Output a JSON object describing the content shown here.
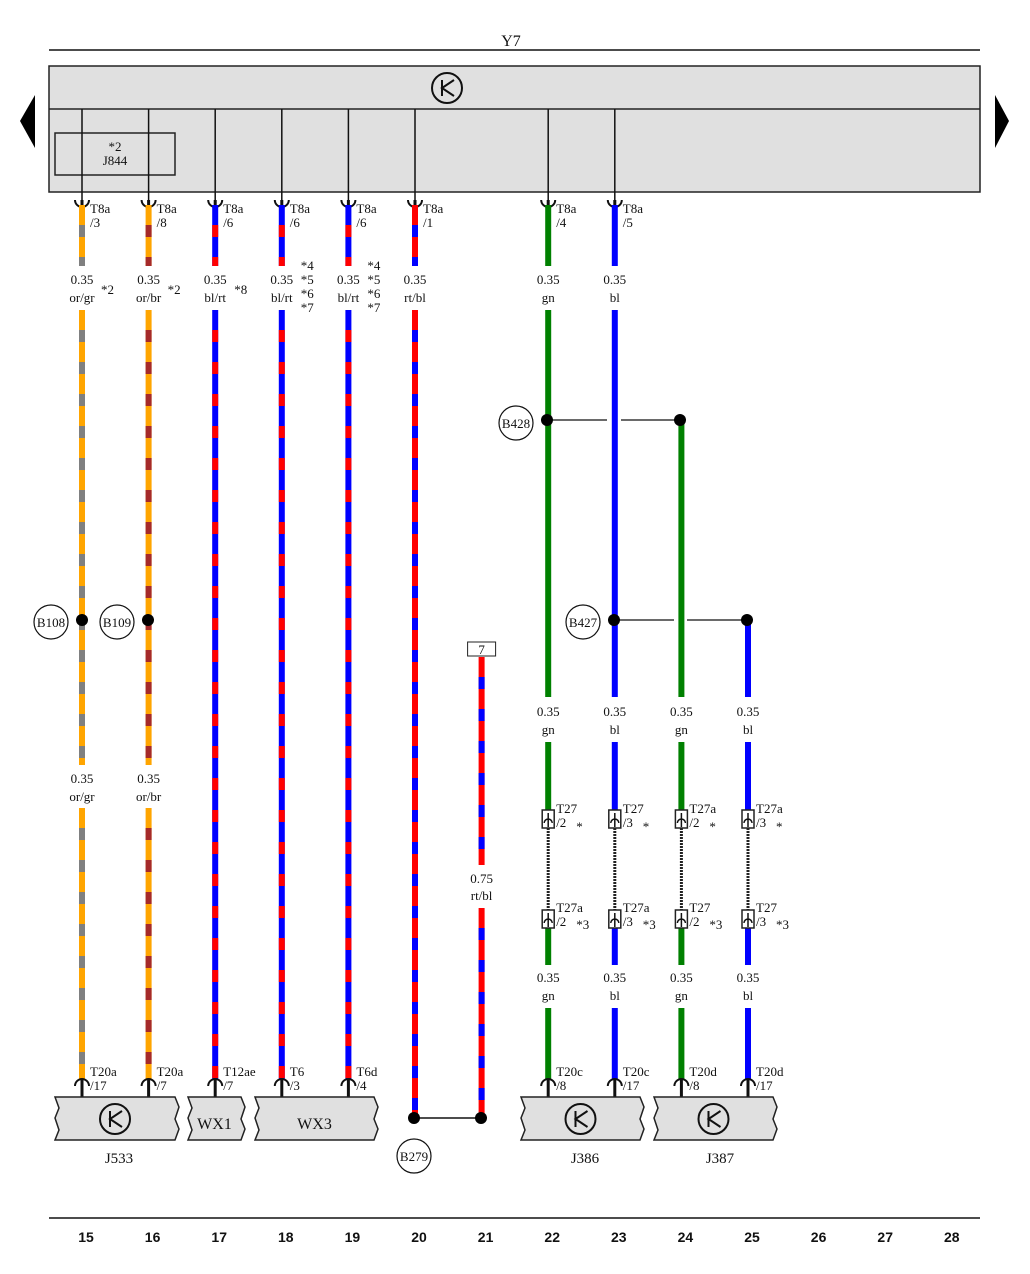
{
  "title": "Y7",
  "colors": {
    "or": "#ffa500",
    "gr": "#808080",
    "br": "#a52a2a",
    "bl": "#0000ff",
    "rt": "#ff0000",
    "gn": "#008000",
    "panel": "#e0e0e0"
  },
  "top_component": {
    "name": "J844",
    "footnote": "*2"
  },
  "wires": [
    {
      "col": "15",
      "top": {
        "conn": "T8a",
        "pin": "/3"
      },
      "gauge": "0.35",
      "code": "or/gr",
      "base": "or",
      "stripe": "gr",
      "note": "*2",
      "mid": {
        "gauge": "0.35",
        "code": "or/gr"
      },
      "bottom": {
        "conn": "T20a",
        "pin": "/17"
      }
    },
    {
      "col": "16",
      "top": {
        "conn": "T8a",
        "pin": "/8"
      },
      "gauge": "0.35",
      "code": "or/br",
      "base": "or",
      "stripe": "br",
      "note": "*2",
      "mid": {
        "gauge": "0.35",
        "code": "or/br"
      },
      "bottom": {
        "conn": "T20a",
        "pin": "/7"
      }
    },
    {
      "col": "17",
      "top": {
        "conn": "T8a",
        "pin": "/6"
      },
      "gauge": "0.35",
      "code": "bl/rt",
      "base": "bl",
      "stripe": "rt",
      "note": "*8",
      "bottom": {
        "conn": "T12ae",
        "pin": "/7"
      }
    },
    {
      "col": "18",
      "top": {
        "conn": "T8a",
        "pin": "/6"
      },
      "gauge": "0.35",
      "code": "bl/rt",
      "base": "bl",
      "stripe": "rt",
      "notes": [
        "*4",
        "*5",
        "*6",
        "*7"
      ],
      "bottom": {
        "conn": "T6",
        "pin": "/3"
      }
    },
    {
      "col": "19",
      "top": {
        "conn": "T8a",
        "pin": "/6"
      },
      "gauge": "0.35",
      "code": "bl/rt",
      "base": "bl",
      "stripe": "rt",
      "notes": [
        "*4",
        "*5",
        "*6",
        "*7"
      ],
      "bottom": {
        "conn": "T6d",
        "pin": "/4"
      }
    },
    {
      "col": "20",
      "top": {
        "conn": "T8a",
        "pin": "/1"
      },
      "gauge": "0.35",
      "code": "rt/bl",
      "base": "rt",
      "stripe": "bl"
    },
    {
      "col": "21",
      "ref": "7",
      "gauge": "0.75",
      "code": "rt/bl",
      "base": "rt",
      "stripe": "bl"
    },
    {
      "col": "22",
      "top": {
        "conn": "T8a",
        "pin": "/4"
      },
      "gauge": "0.35",
      "code": "gn",
      "base": "gn",
      "mid": {
        "gauge": "0.35",
        "code": "gn"
      },
      "c1": {
        "conn": "T27",
        "pin": "/2",
        "note": "*"
      },
      "c2": {
        "conn": "T27a",
        "pin": "/2",
        "note": "*3"
      },
      "low": {
        "gauge": "0.35",
        "code": "gn"
      },
      "bottom": {
        "conn": "T20c",
        "pin": "/8"
      }
    },
    {
      "col": "23",
      "top": {
        "conn": "T8a",
        "pin": "/5"
      },
      "gauge": "0.35",
      "code": "bl",
      "base": "bl",
      "mid": {
        "gauge": "0.35",
        "code": "bl"
      },
      "c1": {
        "conn": "T27",
        "pin": "/3",
        "note": "*"
      },
      "c2": {
        "conn": "T27a",
        "pin": "/3",
        "note": "*3"
      },
      "low": {
        "gauge": "0.35",
        "code": "bl"
      },
      "bottom": {
        "conn": "T20c",
        "pin": "/17"
      }
    },
    {
      "col": "24",
      "base": "gn",
      "mid": {
        "gauge": "0.35",
        "code": "gn"
      },
      "c1": {
        "conn": "T27a",
        "pin": "/2",
        "note": "*"
      },
      "c2": {
        "conn": "T27",
        "pin": "/2",
        "note": "*3"
      },
      "low": {
        "gauge": "0.35",
        "code": "gn"
      },
      "bottom": {
        "conn": "T20d",
        "pin": "/8"
      }
    },
    {
      "col": "25",
      "base": "bl",
      "mid": {
        "gauge": "0.35",
        "code": "bl"
      },
      "c1": {
        "conn": "T27a",
        "pin": "/3",
        "note": "*"
      },
      "c2": {
        "conn": "T27",
        "pin": "/3",
        "note": "*3"
      },
      "low": {
        "gauge": "0.35",
        "code": "bl"
      },
      "bottom": {
        "conn": "T20d",
        "pin": "/17"
      }
    }
  ],
  "splices": [
    "B108",
    "B109",
    "B428",
    "B427",
    "B279"
  ],
  "components": [
    {
      "name": "J533",
      "label": "J533",
      "ground": true
    },
    {
      "name": "WX1",
      "label": "WX1"
    },
    {
      "name": "WX3",
      "label": "WX3"
    },
    {
      "name": "J386",
      "label": "J386",
      "ground": true
    },
    {
      "name": "J387",
      "label": "J387",
      "ground": true
    }
  ],
  "columns": [
    "15",
    "16",
    "17",
    "18",
    "19",
    "20",
    "21",
    "22",
    "23",
    "24",
    "25",
    "26",
    "27",
    "28"
  ]
}
